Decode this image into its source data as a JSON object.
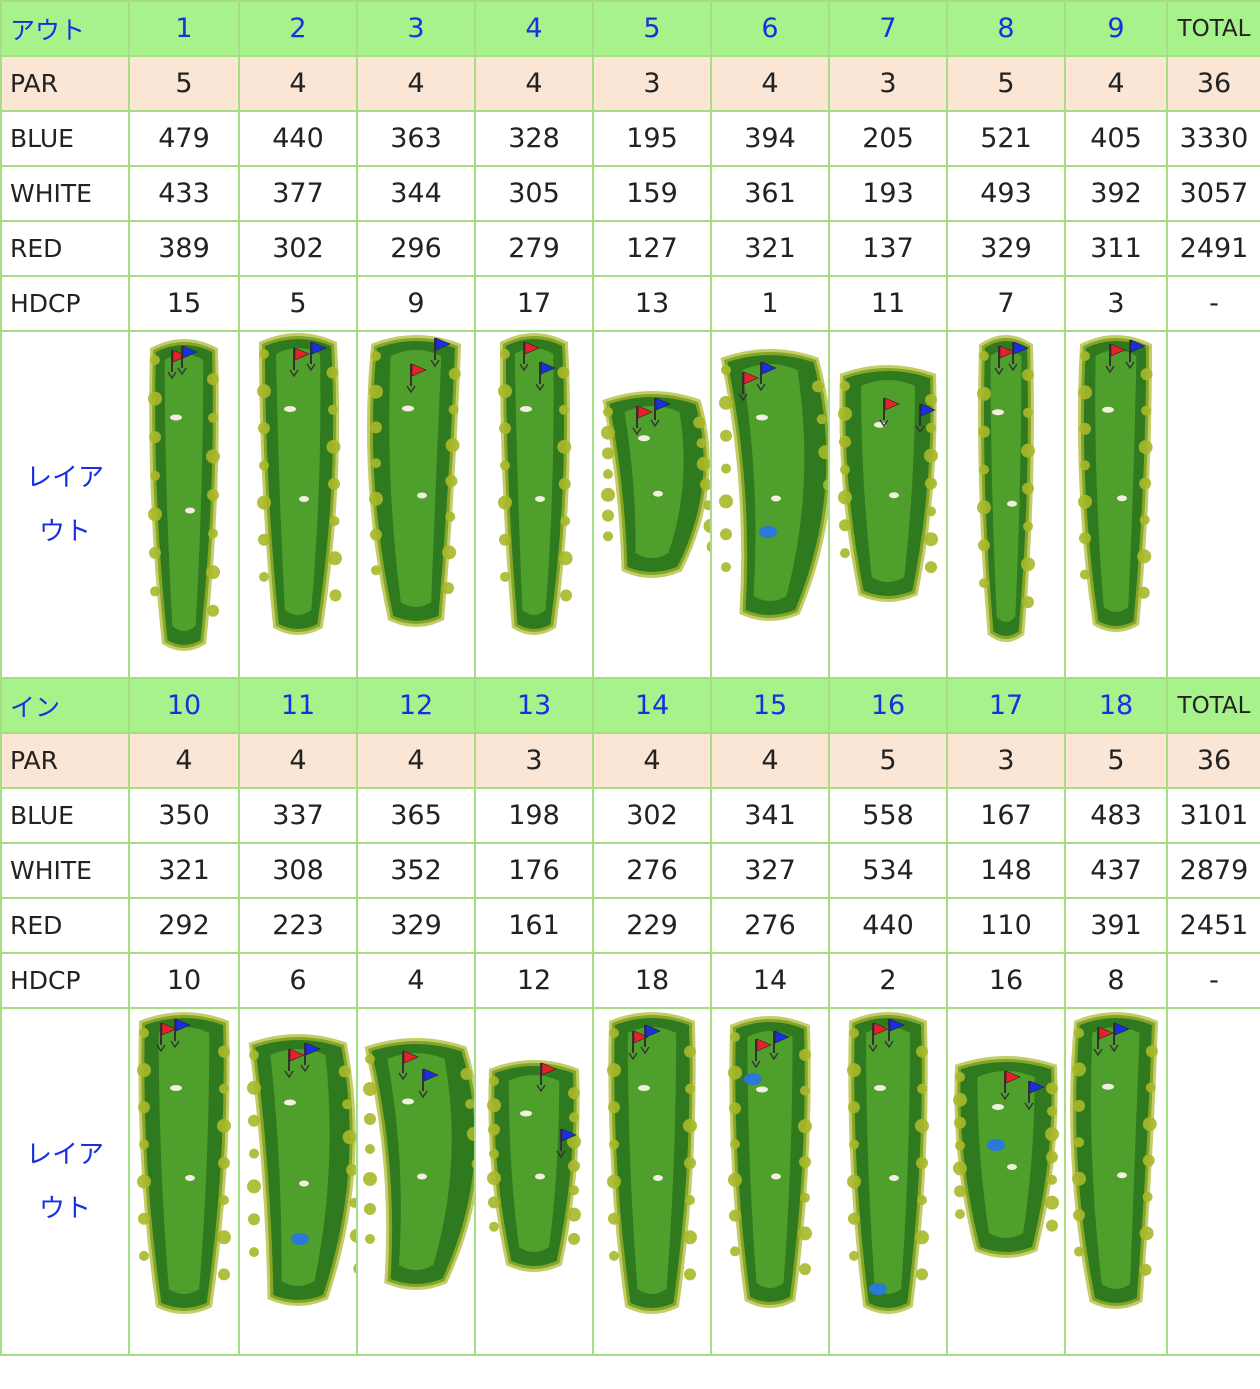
{
  "colors": {
    "header_bg": "#a8f28c",
    "par_bg": "#fbe6d5",
    "border": "#a6de88",
    "header_text": "#1a2fe0",
    "fairway": "#4f9f2c",
    "rough": "#2f7a1f",
    "trees": "#a8b82a",
    "sand": "#f2efe0",
    "water": "#2a78d8",
    "flag_red": "#e8202a",
    "flag_blue": "#1a2fe0"
  },
  "out": {
    "title": "アウト",
    "holes": [
      "1",
      "2",
      "3",
      "4",
      "5",
      "6",
      "7",
      "8",
      "9"
    ],
    "total_label": "TOTAL",
    "rows": [
      {
        "label": "PAR",
        "values": [
          "5",
          "4",
          "4",
          "4",
          "3",
          "4",
          "3",
          "5",
          "4"
        ],
        "total": "36"
      },
      {
        "label": "BLUE",
        "values": [
          "479",
          "440",
          "363",
          "328",
          "195",
          "394",
          "205",
          "521",
          "405"
        ],
        "total": "3330"
      },
      {
        "label": "WHITE",
        "values": [
          "433",
          "377",
          "344",
          "305",
          "159",
          "361",
          "193",
          "493",
          "392"
        ],
        "total": "3057"
      },
      {
        "label": "RED",
        "values": [
          "389",
          "302",
          "296",
          "279",
          "127",
          "321",
          "137",
          "329",
          "311"
        ],
        "total": "2491"
      },
      {
        "label": "HDCP",
        "values": [
          "15",
          "5",
          "9",
          "17",
          "13",
          "1",
          "11",
          "7",
          "3"
        ],
        "total": "-"
      }
    ],
    "layout_label_line1": "レイア",
    "layout_label_line2": "ウト"
  },
  "in": {
    "title": "イン",
    "holes": [
      "10",
      "11",
      "12",
      "13",
      "14",
      "15",
      "16",
      "17",
      "18"
    ],
    "total_label": "TOTAL",
    "rows": [
      {
        "label": "PAR",
        "values": [
          "4",
          "4",
          "4",
          "3",
          "4",
          "4",
          "5",
          "3",
          "5"
        ],
        "total": "36"
      },
      {
        "label": "BLUE",
        "values": [
          "350",
          "337",
          "365",
          "198",
          "302",
          "341",
          "558",
          "167",
          "483"
        ],
        "total": "3101"
      },
      {
        "label": "WHITE",
        "values": [
          "321",
          "308",
          "352",
          "176",
          "276",
          "327",
          "534",
          "148",
          "437"
        ],
        "total": "2879"
      },
      {
        "label": "RED",
        "values": [
          "292",
          "223",
          "329",
          "161",
          "229",
          "276",
          "440",
          "110",
          "391"
        ],
        "total": "2451"
      },
      {
        "label": "HDCP",
        "values": [
          "10",
          "6",
          "4",
          "12",
          "18",
          "14",
          "2",
          "16",
          "8"
        ],
        "total": "-"
      }
    ],
    "layout_label_line1": "レイア",
    "layout_label_line2": "ウト"
  },
  "hole_icons": [
    "hole-layout-map-icon"
  ]
}
